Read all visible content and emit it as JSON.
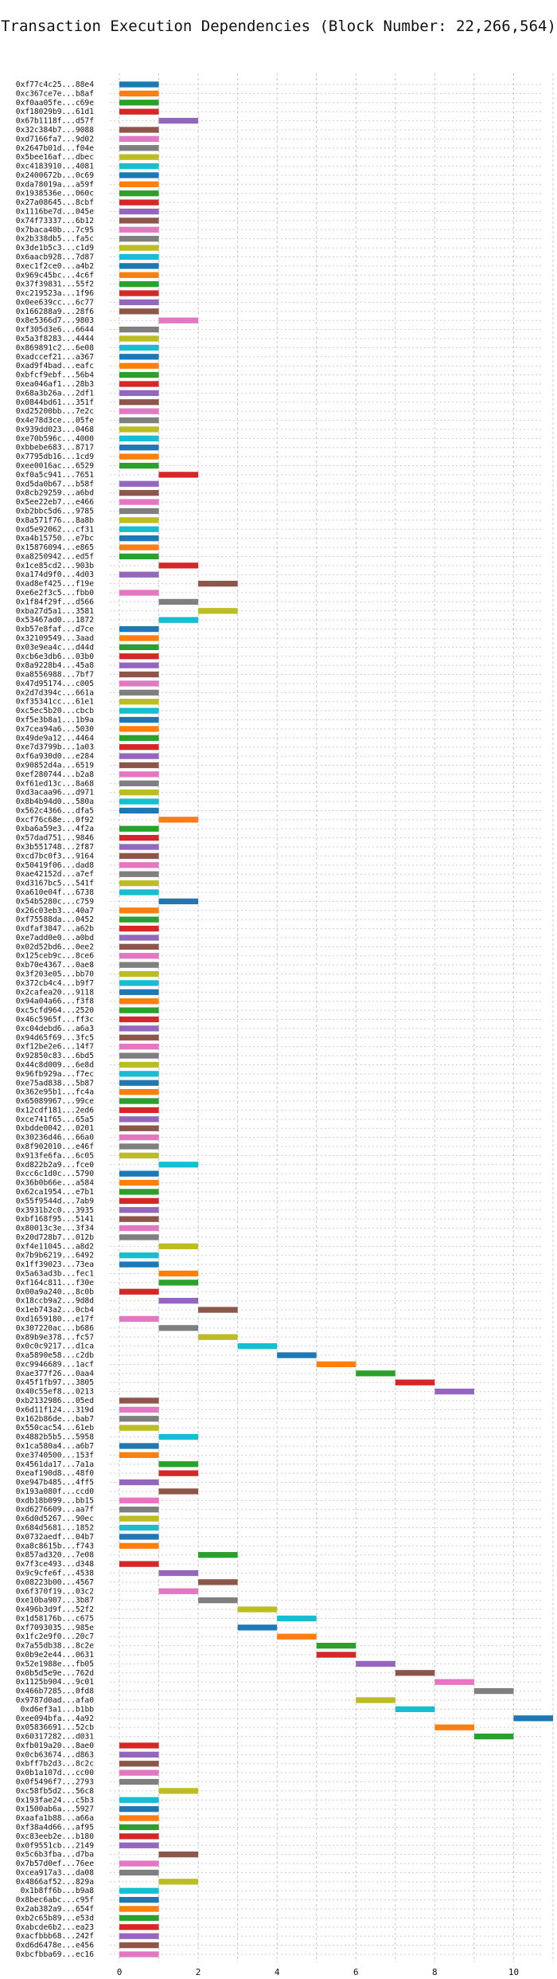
{
  "chart_data": {
    "type": "gantt",
    "title": "Transaction Execution Dependencies (Block Number: 22,266,564)",
    "xlabel": "",
    "ylabel": "",
    "xlim": [
      0,
      11
    ],
    "x_ticks": [
      0,
      2,
      4,
      6,
      8,
      10
    ],
    "grid": true,
    "bar_duration": 1,
    "palette": [
      "#1f77b4",
      "#ff7f0e",
      "#2ca02c",
      "#d62728",
      "#9467bd",
      "#8c564b",
      "#e377c2",
      "#7f7f7f",
      "#bcbd22",
      "#17becf"
    ],
    "transactions": [
      {
        "label": "0xf77c4c25...88e4",
        "start": 0
      },
      {
        "label": "0xc367ce7e...b8af",
        "start": 0
      },
      {
        "label": "0xf0aa05fe...c69e",
        "start": 0
      },
      {
        "label": "0xf18029b9...61d1",
        "start": 0
      },
      {
        "label": "0x67b1118f...d57f",
        "start": 1
      },
      {
        "label": "0x32c384b7...9088",
        "start": 0
      },
      {
        "label": "0xd7166fa7...9d02",
        "start": 0
      },
      {
        "label": "0x2647b01d...f04e",
        "start": 0
      },
      {
        "label": "0x5bee16af...dbec",
        "start": 0
      },
      {
        "label": "0xc4183910...4081",
        "start": 0
      },
      {
        "label": "0x2400672b...0c69",
        "start": 0
      },
      {
        "label": "0xda78019a...a59f",
        "start": 0
      },
      {
        "label": "0x1938536e...060c",
        "start": 0
      },
      {
        "label": "0x27a08645...8cbf",
        "start": 0
      },
      {
        "label": "0x1116be7d...045e",
        "start": 0
      },
      {
        "label": "0x74f73337...6b12",
        "start": 0
      },
      {
        "label": "0x7baca40b...7c95",
        "start": 0
      },
      {
        "label": "0x2b338db5...fa5c",
        "start": 0
      },
      {
        "label": "0x3de1b5c3...c1d9",
        "start": 0
      },
      {
        "label": "0x6aacb928...7d87",
        "start": 0
      },
      {
        "label": "0xec1f2ce0...a4b2",
        "start": 0
      },
      {
        "label": "0x969c45bc...4c6f",
        "start": 0
      },
      {
        "label": "0x37f39831...55f2",
        "start": 0
      },
      {
        "label": "0xc219523a...1f96",
        "start": 0
      },
      {
        "label": "0x0ee639cc...6c77",
        "start": 0
      },
      {
        "label": "0x166288a9...28f6",
        "start": 0
      },
      {
        "label": "0x8e5366d7...9803",
        "start": 1
      },
      {
        "label": "0xf305d3e6...6644",
        "start": 0
      },
      {
        "label": "0x5a3f8283...4444",
        "start": 0
      },
      {
        "label": "0x869891c2...6e08",
        "start": 0
      },
      {
        "label": "0xadccef21...a367",
        "start": 0
      },
      {
        "label": "0xad9f4bad...eafc",
        "start": 0
      },
      {
        "label": "0xbfcf9ebf...56b4",
        "start": 0
      },
      {
        "label": "0xea046af1...28b3",
        "start": 0
      },
      {
        "label": "0x68a3b26a...2df1",
        "start": 0
      },
      {
        "label": "0x0844bd61...351f",
        "start": 0
      },
      {
        "label": "0xd25200bb...7e2c",
        "start": 0
      },
      {
        "label": "0x4e78d3ce...05fe",
        "start": 0
      },
      {
        "label": "0x939dd023...0468",
        "start": 0
      },
      {
        "label": "0xe70b596c...4000",
        "start": 0
      },
      {
        "label": "0xbbebe683...8717",
        "start": 0
      },
      {
        "label": "0x7795db16...1cd9",
        "start": 0
      },
      {
        "label": "0xee0016ac...6529",
        "start": 0
      },
      {
        "label": "0xf0a5c941...7651",
        "start": 1
      },
      {
        "label": "0xd5da0b67...b58f",
        "start": 0
      },
      {
        "label": "0x8cb29259...a6bd",
        "start": 0
      },
      {
        "label": "0x5ee22eb7...e466",
        "start": 0
      },
      {
        "label": "0xb2bbc5d6...9785",
        "start": 0
      },
      {
        "label": "0x8a571f76...8a8b",
        "start": 0
      },
      {
        "label": "0xd5e92062...cf31",
        "start": 0
      },
      {
        "label": "0xa4b15750...e7bc",
        "start": 0
      },
      {
        "label": "0x15876094...e865",
        "start": 0
      },
      {
        "label": "0xa8250942...ed5f",
        "start": 0
      },
      {
        "label": "0x1ce85cd2...903b",
        "start": 1
      },
      {
        "label": "0xa174d9f0...4d03",
        "start": 0
      },
      {
        "label": "0xad8ef425...f19e",
        "start": 2
      },
      {
        "label": "0xe6e2f3c5...fbb0",
        "start": 0
      },
      {
        "label": "0x1f84f29f...d566",
        "start": 1
      },
      {
        "label": "0xba27d5a1...3581",
        "start": 2
      },
      {
        "label": "0x53467ad0...1872",
        "start": 1
      },
      {
        "label": "0xb57e8faf...d7ce",
        "start": 0
      },
      {
        "label": "0x32109549...3aad",
        "start": 0
      },
      {
        "label": "0x03e9ea4c...d44d",
        "start": 0
      },
      {
        "label": "0xcb6e3db6...03b0",
        "start": 0
      },
      {
        "label": "0x8a9228b4...45a8",
        "start": 0
      },
      {
        "label": "0xa8556988...7bf7",
        "start": 0
      },
      {
        "label": "0x47d95174...c005",
        "start": 0
      },
      {
        "label": "0x2d7d394c...661a",
        "start": 0
      },
      {
        "label": "0xf35341cc...61e1",
        "start": 0
      },
      {
        "label": "0xc5ec5b20...cbcb",
        "start": 0
      },
      {
        "label": "0xf5e3b8a1...1b9a",
        "start": 0
      },
      {
        "label": "0x7cea94a6...5030",
        "start": 0
      },
      {
        "label": "0x49de9a12...4464",
        "start": 0
      },
      {
        "label": "0xe7d3799b...1a03",
        "start": 0
      },
      {
        "label": "0xf6a930d0...e284",
        "start": 0
      },
      {
        "label": "0x90852d4a...6519",
        "start": 0
      },
      {
        "label": "0xef280744...b2a8",
        "start": 0
      },
      {
        "label": "0xf61ed13c...8a68",
        "start": 0
      },
      {
        "label": "0xd3acaa96...d971",
        "start": 0
      },
      {
        "label": "0x8b4b94d0...580a",
        "start": 0
      },
      {
        "label": "0x562c4366...dfa5",
        "start": 0
      },
      {
        "label": "0xcf76c68e...0f92",
        "start": 1
      },
      {
        "label": "0xba6a59e3...4f2a",
        "start": 0
      },
      {
        "label": "0x57dad751...9846",
        "start": 0
      },
      {
        "label": "0x3b551748...2f87",
        "start": 0
      },
      {
        "label": "0xcd7bc0f3...9164",
        "start": 0
      },
      {
        "label": "0x50419f06...dad8",
        "start": 0
      },
      {
        "label": "0xae42152d...a7ef",
        "start": 0
      },
      {
        "label": "0xd3167bc5...541f",
        "start": 0
      },
      {
        "label": "0xa610e04f...6738",
        "start": 0
      },
      {
        "label": "0x54b5280c...c759",
        "start": 1
      },
      {
        "label": "0x26c03eb3...40a7",
        "start": 0
      },
      {
        "label": "0xf75588da...0452",
        "start": 0
      },
      {
        "label": "0xdfaf3847...a62b",
        "start": 0
      },
      {
        "label": "0xe7add0e0...a0bd",
        "start": 0
      },
      {
        "label": "0x02d52bd6...0ee2",
        "start": 0
      },
      {
        "label": "0x125ceb9c...8ce6",
        "start": 0
      },
      {
        "label": "0xb70e4367...0ae8",
        "start": 0
      },
      {
        "label": "0x3f203e05...bb70",
        "start": 0
      },
      {
        "label": "0x372cb4c4...b9f7",
        "start": 0
      },
      {
        "label": "0x2cafea20...9118",
        "start": 0
      },
      {
        "label": "0x94a04a66...f3f8",
        "start": 0
      },
      {
        "label": "0xc5cfd964...2520",
        "start": 0
      },
      {
        "label": "0x46c5965f...ff3c",
        "start": 0
      },
      {
        "label": "0xc04debd6...a6a3",
        "start": 0
      },
      {
        "label": "0x94d65f69...3fc5",
        "start": 0
      },
      {
        "label": "0xf12be2e6...14f7",
        "start": 0
      },
      {
        "label": "0x92850c83...6bd5",
        "start": 0
      },
      {
        "label": "0x44c8d009...6e8d",
        "start": 0
      },
      {
        "label": "0x96fb929a...f7ec",
        "start": 0
      },
      {
        "label": "0xe75ad838...5b87",
        "start": 0
      },
      {
        "label": "0x362e95b1...fc4a",
        "start": 0
      },
      {
        "label": "0x65089967...99ce",
        "start": 0
      },
      {
        "label": "0x12cdf181...2ed6",
        "start": 0
      },
      {
        "label": "0xce741f65...65a5",
        "start": 0
      },
      {
        "label": "0xbdde0042...0201",
        "start": 0
      },
      {
        "label": "0x30236d46...66a0",
        "start": 0
      },
      {
        "label": "0x8f902010...e46f",
        "start": 0
      },
      {
        "label": "0x913fe6fa...6c05",
        "start": 0
      },
      {
        "label": "0xd822b2a9...fce0",
        "start": 1
      },
      {
        "label": "0xcc6c1d0c...5790",
        "start": 0
      },
      {
        "label": "0x36b0b66e...a584",
        "start": 0
      },
      {
        "label": "0x62ca1954...e7b1",
        "start": 0
      },
      {
        "label": "0x55f9544d...7ab9",
        "start": 0
      },
      {
        "label": "0x3931b2c0...3935",
        "start": 0
      },
      {
        "label": "0xbf168f95...5141",
        "start": 0
      },
      {
        "label": "0x80013c3e...3f34",
        "start": 0
      },
      {
        "label": "0x20d728b7...012b",
        "start": 0
      },
      {
        "label": "0xf4e11045...a8d2",
        "start": 1
      },
      {
        "label": "0x7b9b6219...6492",
        "start": 0
      },
      {
        "label": "0x1ff39023...73ea",
        "start": 0
      },
      {
        "label": "0x5a63ad3b...fec1",
        "start": 1
      },
      {
        "label": "0xf164c811...f30e",
        "start": 1
      },
      {
        "label": "0x00a9a240...8c0b",
        "start": 0
      },
      {
        "label": "0x18ccb9a2...9d8d",
        "start": 1
      },
      {
        "label": "0x1eb743a2...0cb4",
        "start": 2
      },
      {
        "label": "0xd1659180...e17f",
        "start": 0
      },
      {
        "label": "0x307220ac...b686",
        "start": 1
      },
      {
        "label": "0x89b9e378...fc57",
        "start": 2
      },
      {
        "label": "0x0c0c9217...d1ca",
        "start": 3
      },
      {
        "label": "0xa5890e58...c2db",
        "start": 4
      },
      {
        "label": "0xc9946689...1acf",
        "start": 5
      },
      {
        "label": "0xae377f26...0aa4",
        "start": 6
      },
      {
        "label": "0x45f1fb97...3805",
        "start": 7
      },
      {
        "label": "0x40c55ef8...0213",
        "start": 8
      },
      {
        "label": "0xb2132986...05ed",
        "start": 0
      },
      {
        "label": "0x6d11f124...319d",
        "start": 0
      },
      {
        "label": "0x162b86de...bab7",
        "start": 0
      },
      {
        "label": "0x550cac54...61eb",
        "start": 0
      },
      {
        "label": "0x4882b5b5...5958",
        "start": 1
      },
      {
        "label": "0x1ca580a4...a6b7",
        "start": 0
      },
      {
        "label": "0xe3740500...153f",
        "start": 0
      },
      {
        "label": "0x4561da17...7a1a",
        "start": 1
      },
      {
        "label": "0xeaf190d8...48f0",
        "start": 1
      },
      {
        "label": "0xe947b485...4ff5",
        "start": 0
      },
      {
        "label": "0x193a080f...ccd0",
        "start": 1
      },
      {
        "label": "0xdb18b099...bb15",
        "start": 0
      },
      {
        "label": "0xd6276609...aa7f",
        "start": 0
      },
      {
        "label": "0x6d0d5267...90ec",
        "start": 0
      },
      {
        "label": "0x684d5681...1852",
        "start": 0
      },
      {
        "label": "0x0732aedf...04b7",
        "start": 0
      },
      {
        "label": "0xa8c8615b...f743",
        "start": 0
      },
      {
        "label": "0x857ad320...7e08",
        "start": 2
      },
      {
        "label": "0x7f3ce493...d348",
        "start": 0
      },
      {
        "label": "0x9c9cfe6f...4538",
        "start": 1
      },
      {
        "label": "0x08223b00...4567",
        "start": 2
      },
      {
        "label": "0x6f370f19...03c2",
        "start": 1
      },
      {
        "label": "0xe10ba907...3b87",
        "start": 2
      },
      {
        "label": "0x496b3d9f...52f2",
        "start": 3
      },
      {
        "label": "0x1d58176b...c675",
        "start": 4
      },
      {
        "label": "0xf7093035...985e",
        "start": 3
      },
      {
        "label": "0x1fc2e9f0...20c7",
        "start": 4
      },
      {
        "label": "0x7a55db38...8c2e",
        "start": 5
      },
      {
        "label": "0x0b9e2e44...0631",
        "start": 5
      },
      {
        "label": "0x52e1988e...fb05",
        "start": 6
      },
      {
        "label": "0x0b5d5e9e...762d",
        "start": 7
      },
      {
        "label": "0x1125b904...9c01",
        "start": 8
      },
      {
        "label": "0x466b7285...0fd8",
        "start": 9
      },
      {
        "label": "0x9787d0ad...afa0",
        "start": 6
      },
      {
        "label": "0xd6ef3a1...b1bb",
        "start": 7
      },
      {
        "label": "0xee094bfa...4a92",
        "start": 10
      },
      {
        "label": "0x05836691...52cb",
        "start": 8
      },
      {
        "label": "0x60317282...d031",
        "start": 9
      },
      {
        "label": "0xfb019a20...8ae0",
        "start": 0
      },
      {
        "label": "0x0cb63674...d863",
        "start": 0
      },
      {
        "label": "0xbff7b2d3...8c2c",
        "start": 0
      },
      {
        "label": "0x0b1a107d...cc00",
        "start": 0
      },
      {
        "label": "0x0f5496f7...2793",
        "start": 0
      },
      {
        "label": "0xc58fb5d2...56c8",
        "start": 1
      },
      {
        "label": "0x193fae24...c5b3",
        "start": 0
      },
      {
        "label": "0x1500ab6a...5927",
        "start": 0
      },
      {
        "label": "0xaafa1b88...a66a",
        "start": 0
      },
      {
        "label": "0xf38a4d66...af95",
        "start": 0
      },
      {
        "label": "0xc83eeb2e...b180",
        "start": 0
      },
      {
        "label": "0x0f9551cb...2149",
        "start": 0
      },
      {
        "label": "0x5c6b3fba...d7ba",
        "start": 1
      },
      {
        "label": "0x7b57d0ef...76ee",
        "start": 0
      },
      {
        "label": "0xcea917a3...da08",
        "start": 0
      },
      {
        "label": "0x4866af52...829a",
        "start": 1
      },
      {
        "label": "0x1b8ff6b...b9a8",
        "start": 0
      },
      {
        "label": "0x8bec6abc...c95f",
        "start": 0
      },
      {
        "label": "0x2ab382a9...654f",
        "start": 0
      },
      {
        "label": "0xb2c65b89...e53d",
        "start": 0
      },
      {
        "label": "0xabcde6b2...ea23",
        "start": 0
      },
      {
        "label": "0xacfbbb68...242f",
        "start": 0
      },
      {
        "label": "0xd6d6478e...e456",
        "start": 0
      },
      {
        "label": "0xbcfbba69...ec16",
        "start": 0
      }
    ]
  }
}
